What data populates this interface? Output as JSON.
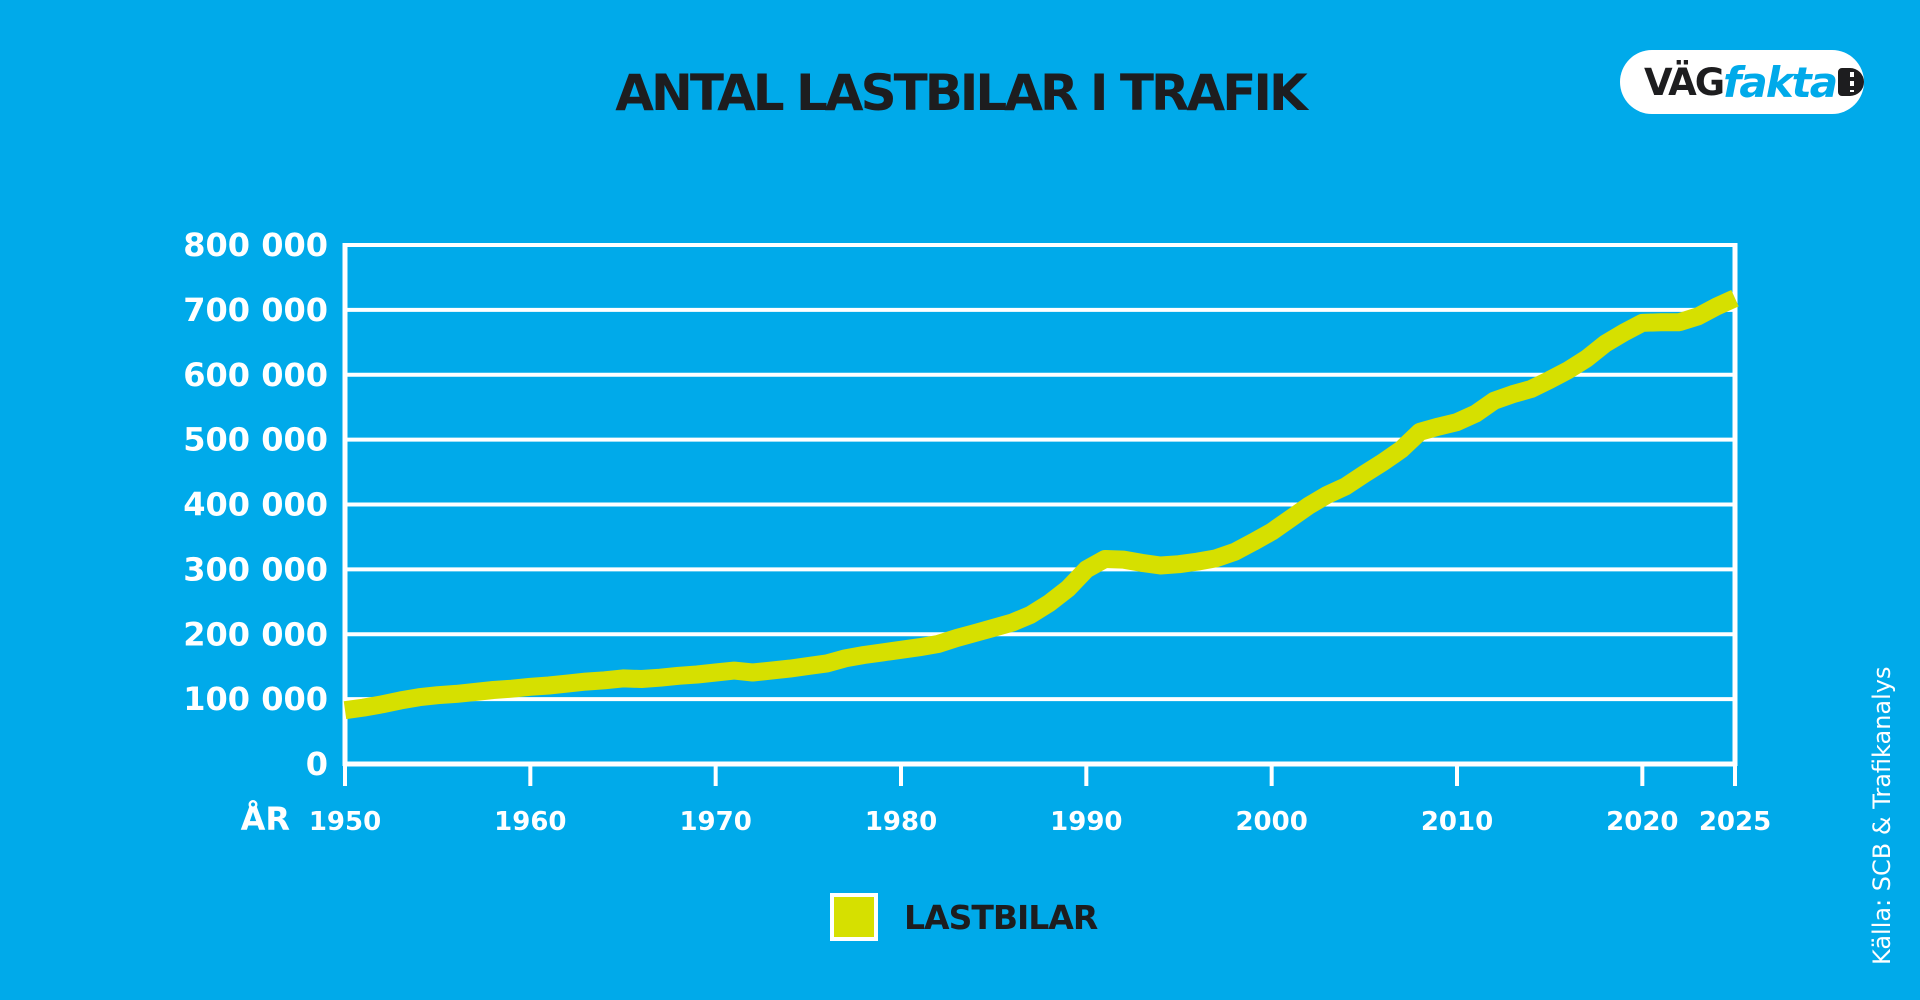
{
  "logo": {
    "part1": "VÄG",
    "part2": "fakta"
  },
  "source": "Källa: SCB & Trafikanalys",
  "colors": {
    "background": "#00aaea",
    "line": "#d6e000",
    "grid": "#ffffff",
    "text_dark": "#1d1d1f"
  },
  "chart_data": {
    "type": "line",
    "title": "ANTAL LASTBILAR I TRAFIK",
    "xlabel": "ÅR",
    "ylabel": "",
    "xlim": [
      1950,
      2025
    ],
    "ylim": [
      0,
      800000
    ],
    "grid": true,
    "legend_position": "bottom-center",
    "x_ticks": [
      1950,
      1960,
      1970,
      1980,
      1990,
      2000,
      2010,
      2020,
      2025
    ],
    "x_tick_labels": [
      "1950",
      "1960",
      "1970",
      "1980",
      "1990",
      "2000",
      "2010",
      "2020",
      "2025"
    ],
    "y_ticks": [
      0,
      100000,
      200000,
      300000,
      400000,
      500000,
      600000,
      700000,
      800000
    ],
    "y_tick_labels": [
      "0",
      "100 000",
      "200 000",
      "300 000",
      "400 000",
      "500 000",
      "600 000",
      "700 000",
      "800 000"
    ],
    "series": [
      {
        "name": "LASTBILAR",
        "color": "#d6e000",
        "x": [
          1950,
          1951,
          1952,
          1953,
          1954,
          1955,
          1956,
          1957,
          1958,
          1959,
          1960,
          1961,
          1962,
          1963,
          1964,
          1965,
          1966,
          1967,
          1968,
          1969,
          1970,
          1971,
          1972,
          1973,
          1974,
          1975,
          1976,
          1977,
          1978,
          1979,
          1980,
          1981,
          1982,
          1983,
          1984,
          1985,
          1986,
          1987,
          1988,
          1989,
          1990,
          1991,
          1992,
          1993,
          1994,
          1995,
          1996,
          1997,
          1998,
          1999,
          2000,
          2001,
          2002,
          2003,
          2004,
          2005,
          2006,
          2007,
          2008,
          2009,
          2010,
          2011,
          2012,
          2013,
          2014,
          2015,
          2016,
          2017,
          2018,
          2019,
          2020,
          2021,
          2022,
          2023,
          2024,
          2025
        ],
        "values": [
          83000,
          87000,
          92000,
          98000,
          103000,
          106000,
          108000,
          111000,
          114000,
          116000,
          119000,
          121000,
          124000,
          127000,
          129000,
          132000,
          131000,
          133000,
          136000,
          138000,
          141000,
          144000,
          141000,
          144000,
          147000,
          151000,
          155000,
          163000,
          168000,
          172000,
          176000,
          180000,
          185000,
          194000,
          202000,
          210000,
          218000,
          230000,
          248000,
          270000,
          300000,
          316000,
          315000,
          310000,
          306000,
          308000,
          312000,
          317000,
          327000,
          342000,
          358000,
          378000,
          398000,
          415000,
          428000,
          447000,
          465000,
          485000,
          512000,
          520000,
          527000,
          540000,
          560000,
          570000,
          578000,
          592000,
          607000,
          625000,
          648000,
          665000,
          680000,
          681000,
          681000,
          690000,
          705000,
          718000
        ]
      }
    ]
  }
}
